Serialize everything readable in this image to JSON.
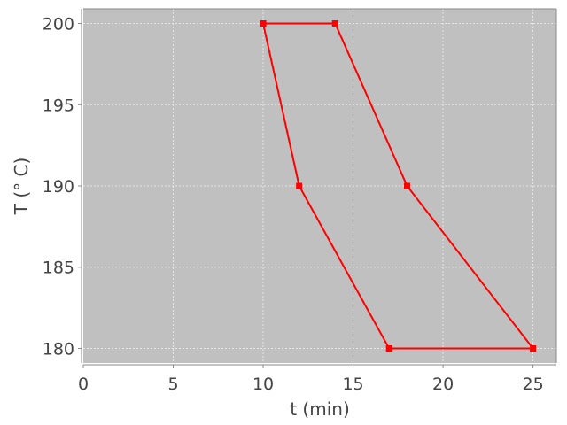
{
  "chart_data": {
    "type": "line",
    "title": "",
    "xlabel": "t (min)",
    "ylabel": "T (° C)",
    "xlim": [
      0,
      26.3
    ],
    "ylim": [
      179.1,
      200.9
    ],
    "xticks": [
      0,
      5,
      10,
      15,
      20,
      25
    ],
    "yticks": [
      180,
      185,
      190,
      195,
      200
    ],
    "xtick_labels": [
      "0",
      "5",
      "10",
      "15",
      "20",
      "25"
    ],
    "ytick_labels": [
      "180",
      "185",
      "190",
      "195",
      "200"
    ],
    "grid": true,
    "plot_background": "#c0c0c0",
    "grid_color": "#e6e6e6",
    "series": [
      {
        "color": "#ff0000",
        "marker": "square",
        "points": [
          {
            "x": 10,
            "y": 200
          },
          {
            "x": 14,
            "y": 200
          },
          {
            "x": 18,
            "y": 190
          },
          {
            "x": 25,
            "y": 180
          },
          {
            "x": 17,
            "y": 180
          },
          {
            "x": 12,
            "y": 190
          },
          {
            "x": 10,
            "y": 200
          }
        ]
      }
    ]
  }
}
